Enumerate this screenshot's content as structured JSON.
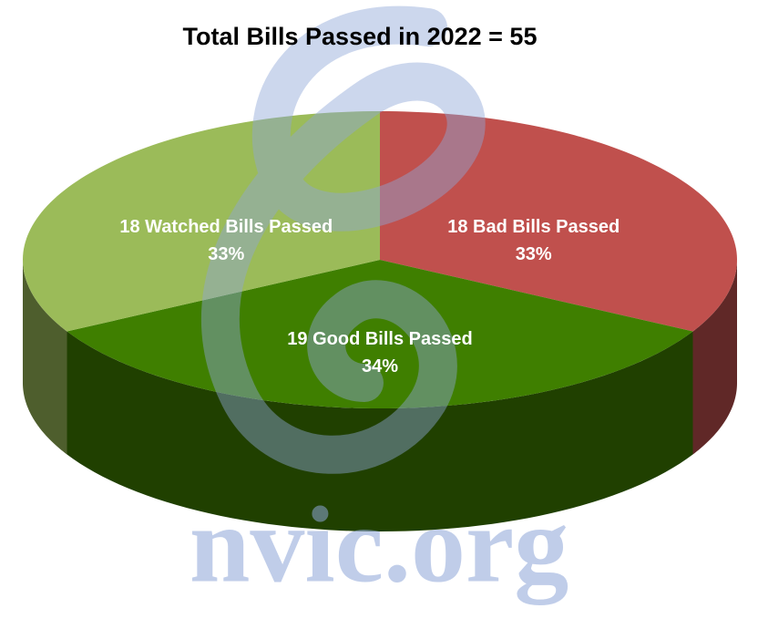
{
  "chart_data": {
    "type": "pie3d",
    "title": "Total Bills Passed in 2022 = 55",
    "categories": [
      "18 Bad Bills Passed",
      "19 Good Bills Passed",
      "18 Watched Bills Passed"
    ],
    "values": [
      33,
      34,
      33
    ],
    "value_labels": [
      "33%",
      "34%",
      "33%"
    ],
    "colors": [
      "#c0504d",
      "#3f7f00",
      "#9bbb59"
    ],
    "watermark": "nvic.org"
  }
}
